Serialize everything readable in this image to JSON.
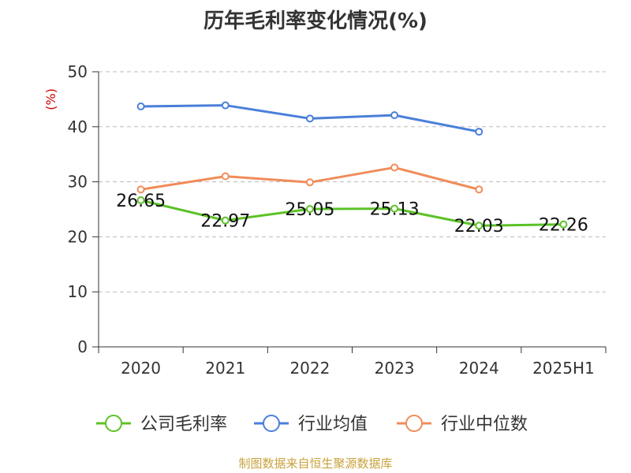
{
  "chart_data": {
    "type": "line",
    "title": "历年毛利率变化情况(%)",
    "ylabel": "(%)",
    "xlabel": "",
    "categories": [
      "2020",
      "2021",
      "2022",
      "2023",
      "2024",
      "2025H1"
    ],
    "ylim": [
      0,
      50
    ],
    "yticks": [
      0,
      10,
      20,
      30,
      40,
      50
    ],
    "grid": true,
    "legend_position": "bottom",
    "series": [
      {
        "name": "公司毛利率",
        "color": "#5cc227",
        "values": [
          26.65,
          22.97,
          25.05,
          25.13,
          22.03,
          22.26
        ],
        "labels": [
          "26.65",
          "22.97",
          "25.05",
          "25.13",
          "22.03",
          "22.26"
        ]
      },
      {
        "name": "行业均值",
        "color": "#4a7fd9",
        "values": [
          43.7,
          43.9,
          41.5,
          42.1,
          39.1,
          null
        ]
      },
      {
        "name": "行业中位数",
        "color": "#f08c5a",
        "values": [
          28.6,
          31.0,
          29.9,
          32.6,
          28.6,
          null
        ]
      }
    ]
  },
  "source": "制图数据来自恒生聚源数据库"
}
